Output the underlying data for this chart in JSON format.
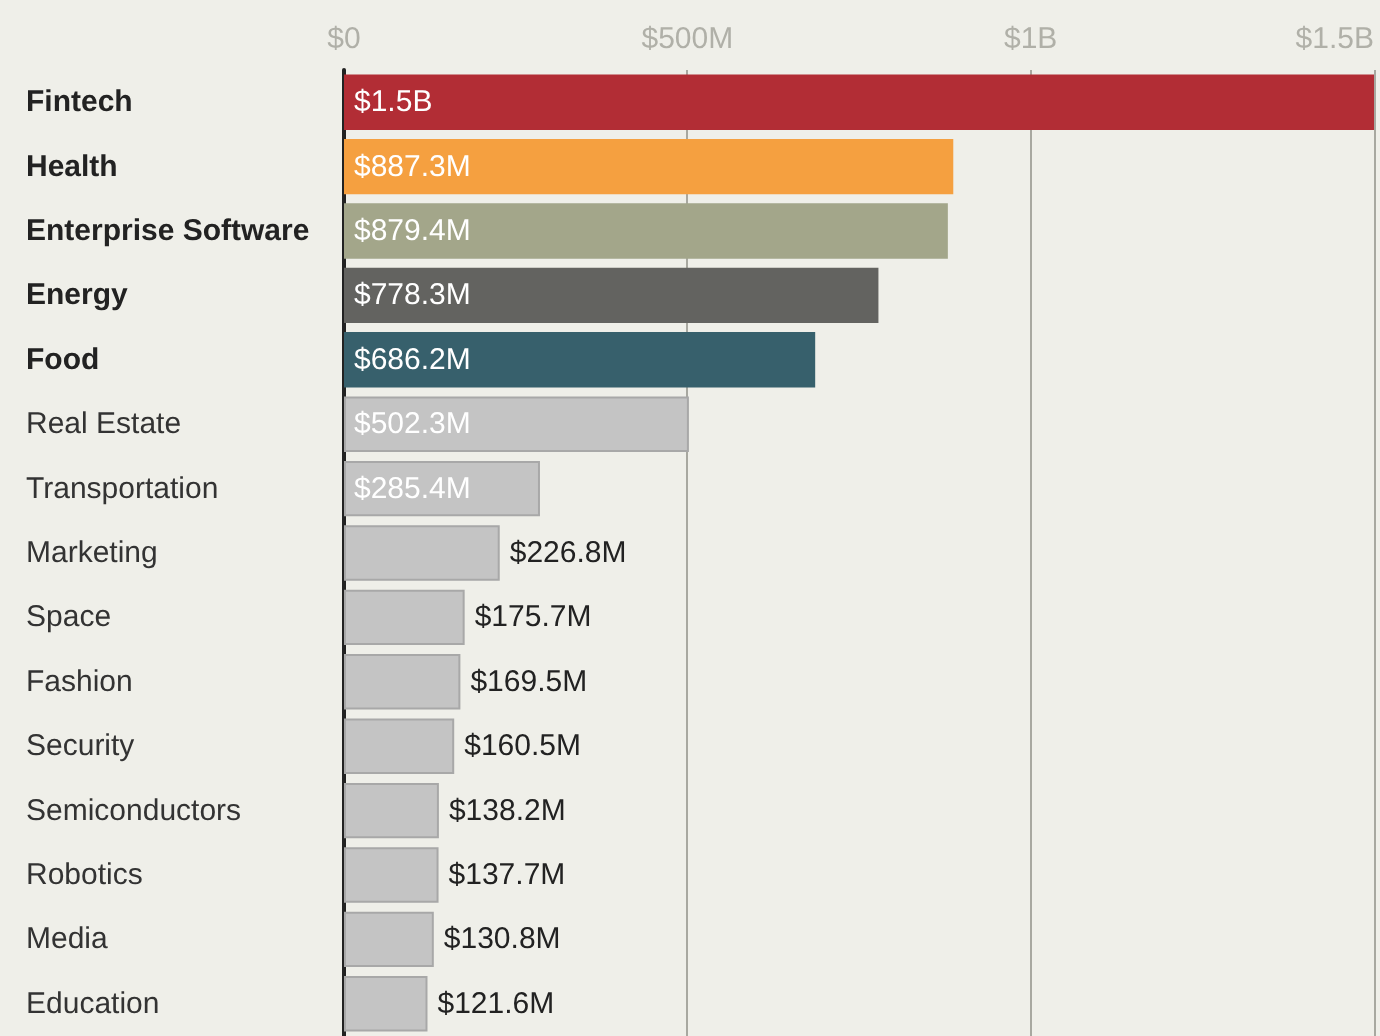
{
  "chart_data": {
    "type": "bar",
    "orientation": "horizontal",
    "categories": [
      "Fintech",
      "Health",
      "Enterprise Software",
      "Energy",
      "Food",
      "Real Estate",
      "Transportation",
      "Marketing",
      "Space",
      "Fashion",
      "Security",
      "Semiconductors",
      "Robotics",
      "Media",
      "Education"
    ],
    "values": [
      1500000000,
      887300000,
      879400000,
      778300000,
      686200000,
      502300000,
      285400000,
      226800000,
      175700000,
      169500000,
      160500000,
      138200000,
      137700000,
      130800000,
      121600000
    ],
    "value_labels": [
      "$1.5B",
      "$887.3M",
      "$879.4M",
      "$778.3M",
      "$686.2M",
      "$502.3M",
      "$285.4M",
      "$226.8M",
      "$175.7M",
      "$169.5M",
      "$160.5M",
      "$138.2M",
      "$137.7M",
      "$130.8M",
      "$121.6M"
    ],
    "colors": [
      "#b22d35",
      "#f5a040",
      "#a3a68a",
      "#636360",
      "#37606c",
      "#c4c4c4",
      "#c4c4c4",
      "#c4c4c4",
      "#c4c4c4",
      "#c4c4c4",
      "#c4c4c4",
      "#c4c4c4",
      "#c4c4c4",
      "#c4c4c4",
      "#c4c4c4"
    ],
    "xlim": [
      0,
      1500000000
    ],
    "xticks": [
      {
        "value": 0,
        "label": "$0"
      },
      {
        "value": 500000000,
        "label": "$500M"
      },
      {
        "value": 1000000000,
        "label": "$1B"
      },
      {
        "value": 1500000000,
        "label": "$1.5B"
      }
    ],
    "grid": "x"
  }
}
